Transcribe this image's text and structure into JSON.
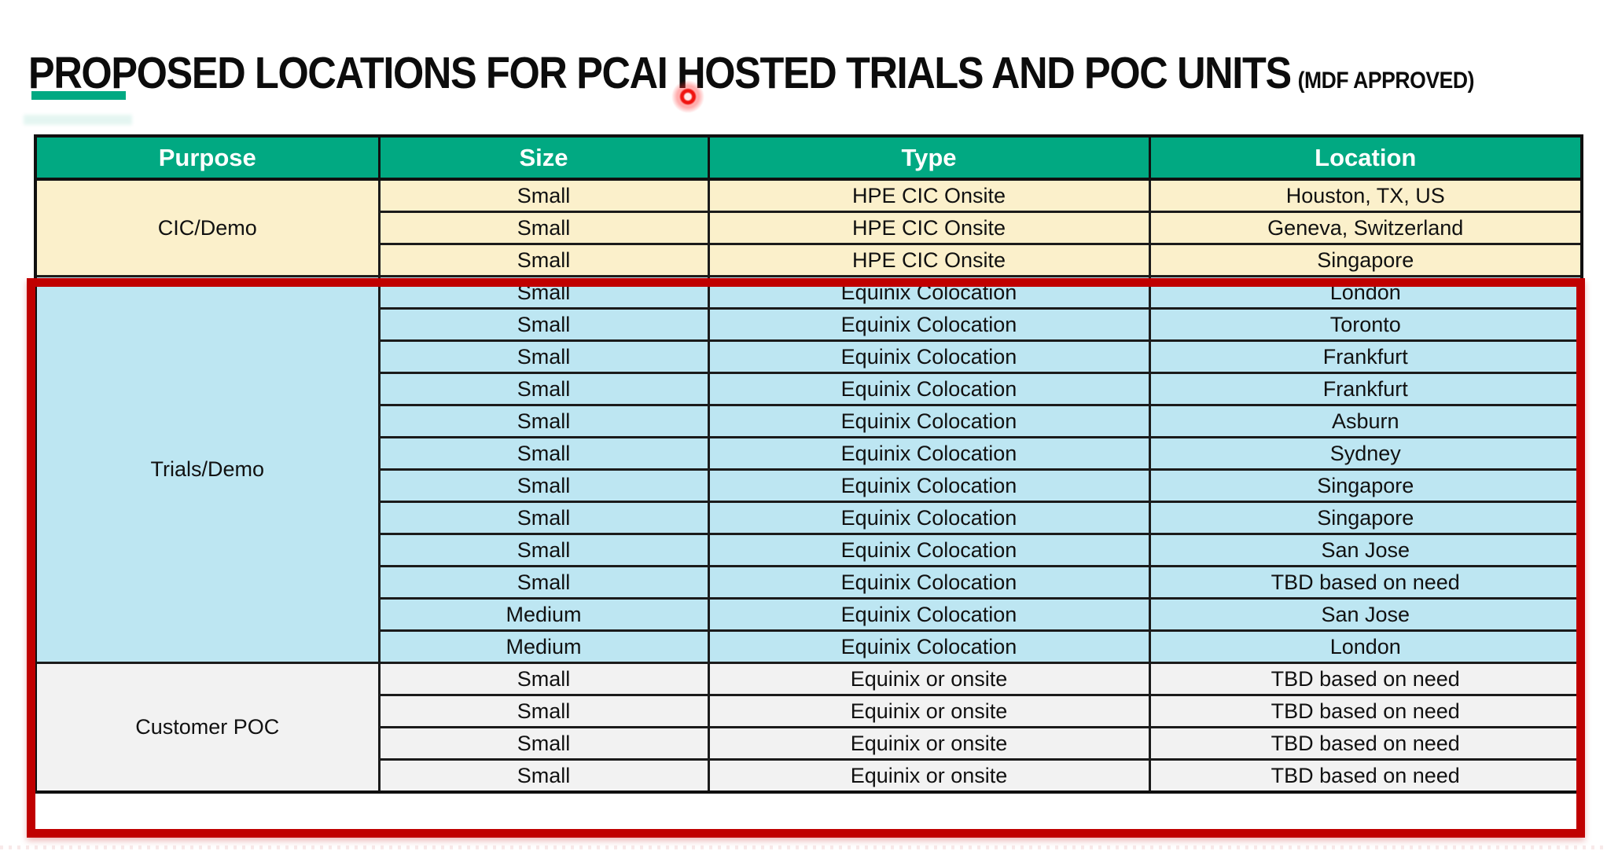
{
  "title": {
    "main": "PROPOSED LOCATIONS FOR PCAI HOSTED TRIALS AND POC UNITS",
    "suffix": "(MDF APPROVED)"
  },
  "accent": {
    "underline_color": "#01A982",
    "highlight_border_color": "#C00000",
    "laser_color": "#F01410"
  },
  "table": {
    "columns": [
      "Purpose",
      "Size",
      "Type",
      "Location"
    ],
    "header_bg": "#01A982",
    "header_text_color": "#FFFFFF",
    "sections": [
      {
        "purpose": "CIC/Demo",
        "bg": "#FBF0CB",
        "rows": [
          {
            "size": "Small",
            "type": "HPE CIC Onsite",
            "location": "Houston, TX, US"
          },
          {
            "size": "Small",
            "type": "HPE CIC Onsite",
            "location": "Geneva, Switzerland"
          },
          {
            "size": "Small",
            "type": "HPE CIC Onsite",
            "location": "Singapore"
          }
        ]
      },
      {
        "purpose": "Trials/Demo",
        "bg": "#BDE6F2",
        "rows": [
          {
            "size": "Small",
            "type": "Equinix Colocation",
            "location": "London"
          },
          {
            "size": "Small",
            "type": "Equinix Colocation",
            "location": "Toronto"
          },
          {
            "size": "Small",
            "type": "Equinix Colocation",
            "location": "Frankfurt"
          },
          {
            "size": "Small",
            "type": "Equinix Colocation",
            "location": "Frankfurt"
          },
          {
            "size": "Small",
            "type": "Equinix Colocation",
            "location": "Asburn"
          },
          {
            "size": "Small",
            "type": "Equinix Colocation",
            "location": "Sydney"
          },
          {
            "size": "Small",
            "type": "Equinix Colocation",
            "location": "Singapore"
          },
          {
            "size": "Small",
            "type": "Equinix Colocation",
            "location": "Singapore"
          },
          {
            "size": "Small",
            "type": "Equinix Colocation",
            "location": "San Jose"
          },
          {
            "size": "Small",
            "type": "Equinix Colocation",
            "location": "TBD based on need"
          },
          {
            "size": "Medium",
            "type": "Equinix Colocation",
            "location": "San Jose"
          },
          {
            "size": "Medium",
            "type": "Equinix Colocation",
            "location": "London"
          }
        ]
      },
      {
        "purpose": "Customer POC",
        "bg": "#F2F2F2",
        "rows": [
          {
            "size": "Small",
            "type": "Equinix or onsite",
            "location": "TBD based on need"
          },
          {
            "size": "Small",
            "type": "Equinix or onsite",
            "location": "TBD based on need"
          },
          {
            "size": "Small",
            "type": "Equinix or onsite",
            "location": "TBD based on need"
          },
          {
            "size": "Small",
            "type": "Equinix or onsite",
            "location": "TBD based on need"
          }
        ]
      }
    ],
    "highlighted_sections": [
      "Trials/Demo",
      "Customer POC"
    ]
  }
}
